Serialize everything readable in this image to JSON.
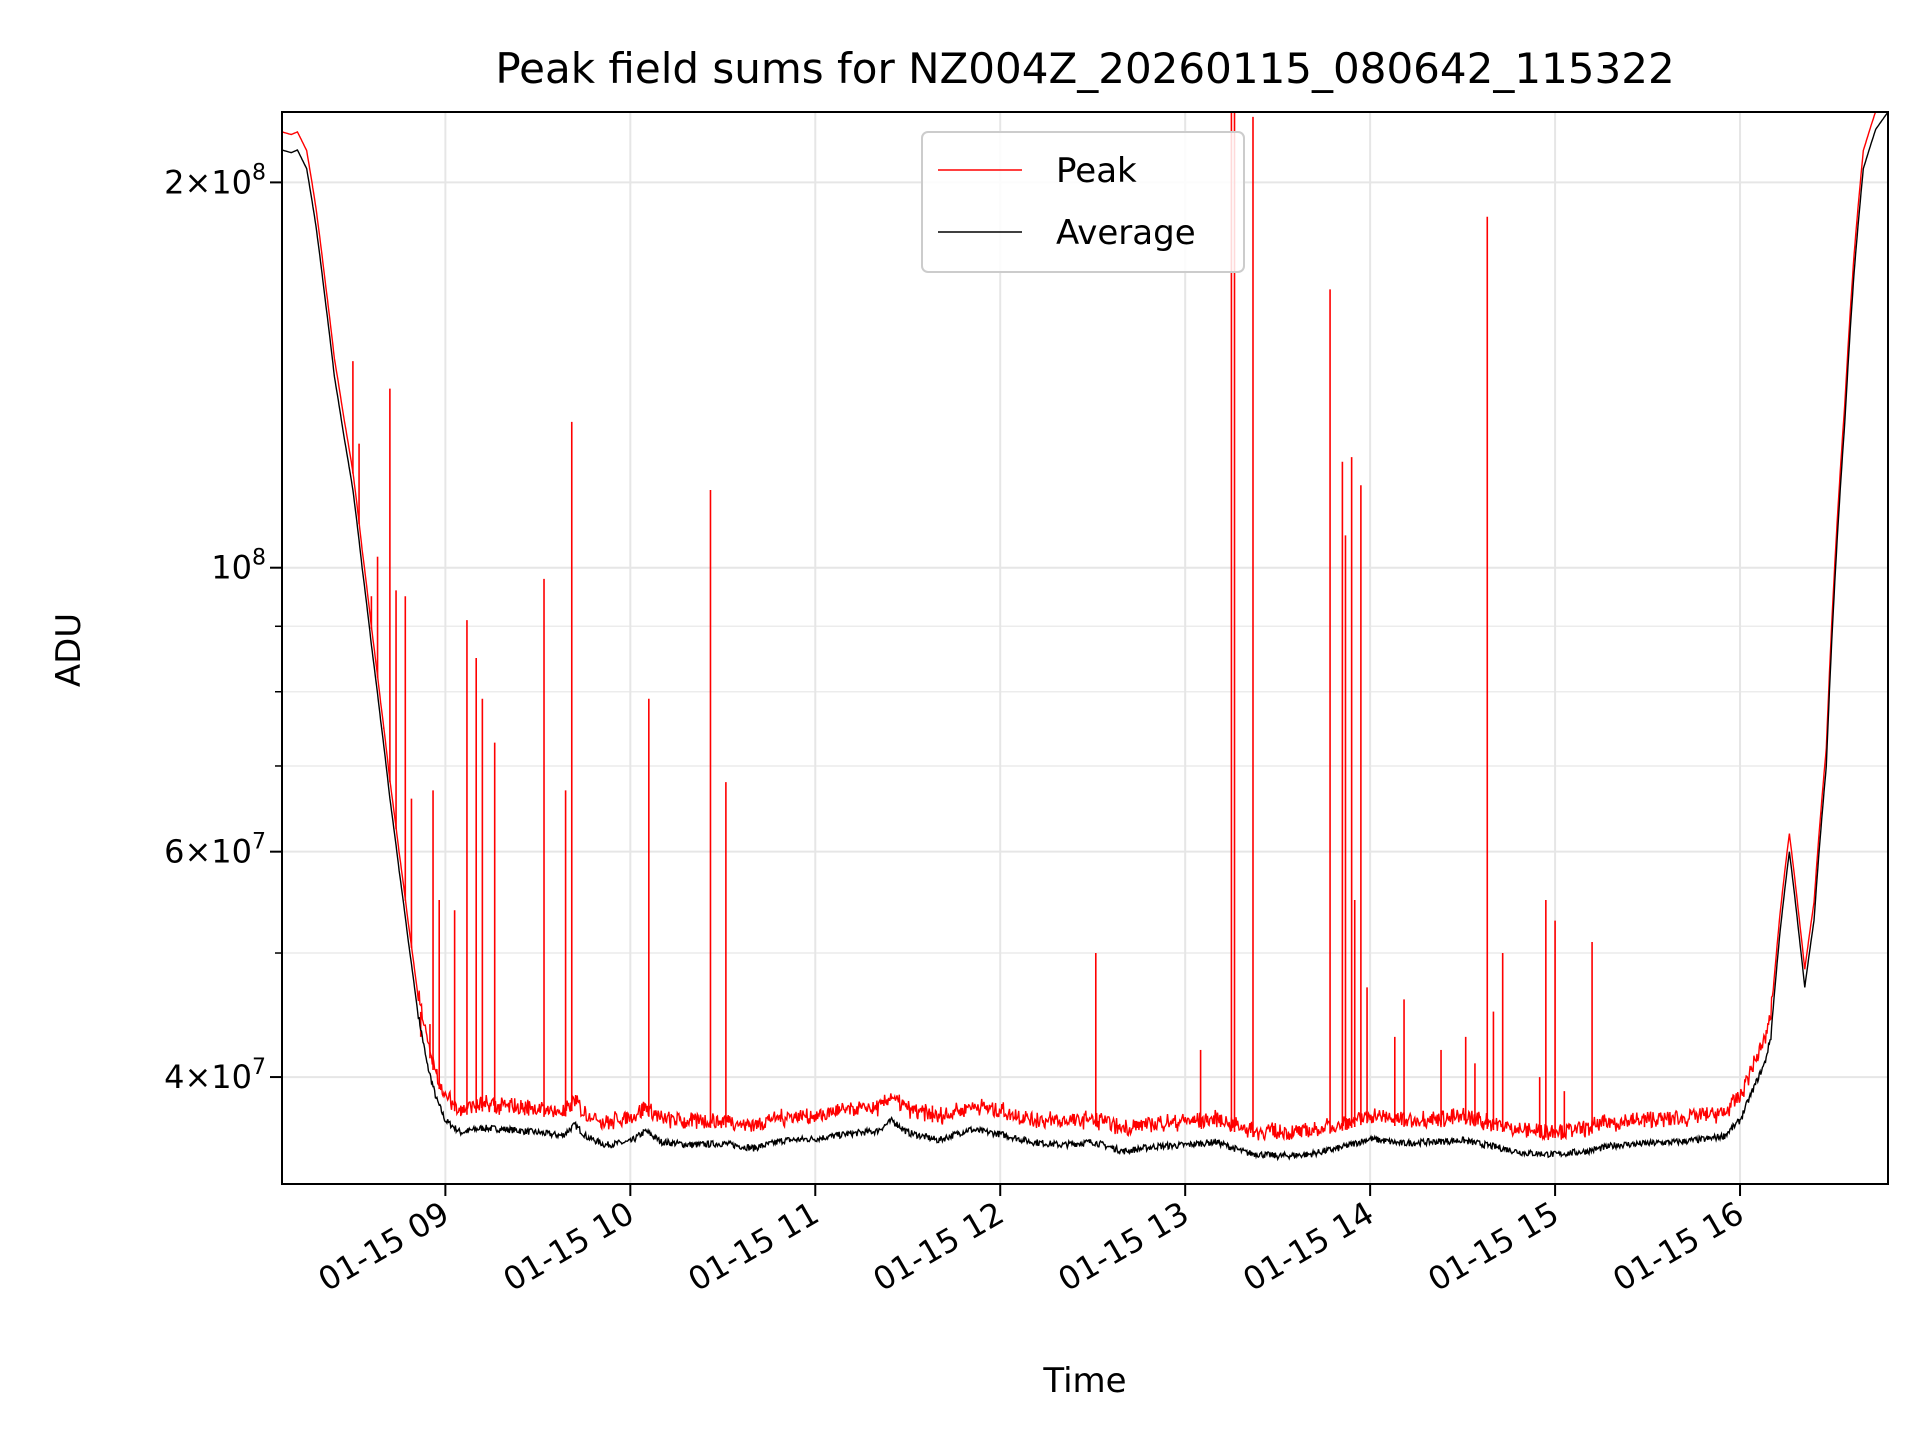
{
  "chart_data": {
    "type": "line",
    "title": "Peak field sums for NZ004Z_20260115_080642_115322",
    "xlabel": "Time",
    "ylabel": "ADU",
    "y_scale": "log",
    "xlim": [
      "01-15 08:07",
      "01-15 16:48"
    ],
    "ylim": [
      33000000,
      227000000
    ],
    "grid": true,
    "legend_position": "top-center",
    "x_ticks": [
      "01-15 09",
      "01-15 10",
      "01-15 11",
      "01-15 12",
      "01-15 13",
      "01-15 14",
      "01-15 15",
      "01-15 16"
    ],
    "x_tick_times": [
      "01-15 09:00",
      "01-15 10:00",
      "01-15 11:00",
      "01-15 12:00",
      "01-15 13:00",
      "01-15 14:00",
      "01-15 15:00",
      "01-15 16:00"
    ],
    "y_major_ticks": [
      {
        "value": 40000000,
        "mantissa": "4",
        "exponent": "7"
      },
      {
        "value": 60000000,
        "mantissa": "6",
        "exponent": "7"
      },
      {
        "value": 100000000,
        "mantissa": "",
        "exponent": "8"
      },
      {
        "value": 200000000,
        "mantissa": "2",
        "exponent": "8"
      }
    ],
    "y_minor_ticks": [
      30000000,
      50000000,
      70000000,
      80000000,
      90000000
    ],
    "series": [
      {
        "name": "Average",
        "color": "#000000",
        "points": [
          [
            "01-15 08:07",
            212000000
          ],
          [
            "01-15 08:10",
            211000000
          ],
          [
            "01-15 08:12",
            212000000
          ],
          [
            "01-15 08:15",
            205000000
          ],
          [
            "01-15 08:18",
            185000000
          ],
          [
            "01-15 08:21",
            162000000
          ],
          [
            "01-15 08:24",
            141000000
          ],
          [
            "01-15 08:27",
            127000000
          ],
          [
            "01-15 08:30",
            115000000
          ],
          [
            "01-15 08:33",
            100000000
          ],
          [
            "01-15 08:36",
            87000000
          ],
          [
            "01-15 08:39",
            76000000
          ],
          [
            "01-15 08:42",
            66000000
          ],
          [
            "01-15 08:45",
            58000000
          ],
          [
            "01-15 08:48",
            51000000
          ],
          [
            "01-15 08:51",
            45000000
          ],
          [
            "01-15 08:54",
            41000000
          ],
          [
            "01-15 08:57",
            38500000
          ],
          [
            "01-15 09:00",
            37000000
          ],
          [
            "01-15 09:05",
            36200000
          ],
          [
            "01-15 09:12",
            36500000
          ],
          [
            "01-15 09:20",
            36400000
          ],
          [
            "01-15 09:30",
            36200000
          ],
          [
            "01-15 09:38",
            36000000
          ],
          [
            "01-15 09:42",
            36700000
          ],
          [
            "01-15 09:46",
            35900000
          ],
          [
            "01-15 09:52",
            35400000
          ],
          [
            "01-15 10:00",
            35600000
          ],
          [
            "01-15 10:05",
            36300000
          ],
          [
            "01-15 10:10",
            35600000
          ],
          [
            "01-15 10:20",
            35400000
          ],
          [
            "01-15 10:30",
            35500000
          ],
          [
            "01-15 10:40",
            35200000
          ],
          [
            "01-15 10:50",
            35700000
          ],
          [
            "01-15 11:00",
            35800000
          ],
          [
            "01-15 11:10",
            36100000
          ],
          [
            "01-15 11:20",
            36300000
          ],
          [
            "01-15 11:25",
            37000000
          ],
          [
            "01-15 11:30",
            36200000
          ],
          [
            "01-15 11:40",
            35700000
          ],
          [
            "01-15 11:50",
            36400000
          ],
          [
            "01-15 12:00",
            36100000
          ],
          [
            "01-15 12:10",
            35600000
          ],
          [
            "01-15 12:20",
            35400000
          ],
          [
            "01-15 12:30",
            35600000
          ],
          [
            "01-15 12:40",
            35000000
          ],
          [
            "01-15 12:50",
            35300000
          ],
          [
            "01-15 13:00",
            35400000
          ],
          [
            "01-15 13:10",
            35600000
          ],
          [
            "01-15 13:20",
            34900000
          ],
          [
            "01-15 13:30",
            34700000
          ],
          [
            "01-15 13:40",
            34800000
          ],
          [
            "01-15 13:50",
            35200000
          ],
          [
            "01-15 14:00",
            35800000
          ],
          [
            "01-15 14:10",
            35500000
          ],
          [
            "01-15 14:20",
            35600000
          ],
          [
            "01-15 14:30",
            35700000
          ],
          [
            "01-15 14:40",
            35300000
          ],
          [
            "01-15 14:50",
            34900000
          ],
          [
            "01-15 15:00",
            34800000
          ],
          [
            "01-15 15:10",
            35000000
          ],
          [
            "01-15 15:20",
            35400000
          ],
          [
            "01-15 15:30",
            35500000
          ],
          [
            "01-15 15:40",
            35600000
          ],
          [
            "01-15 15:50",
            35800000
          ],
          [
            "01-15 15:55",
            36000000
          ],
          [
            "01-15 16:00",
            37000000
          ],
          [
            "01-15 16:04",
            39000000
          ],
          [
            "01-15 16:08",
            41000000
          ],
          [
            "01-15 16:10",
            43000000
          ],
          [
            "01-15 16:13",
            52000000
          ],
          [
            "01-15 16:16",
            60000000
          ],
          [
            "01-15 16:19",
            52000000
          ],
          [
            "01-15 16:21",
            47000000
          ],
          [
            "01-15 16:24",
            53000000
          ],
          [
            "01-15 16:28",
            70000000
          ],
          [
            "01-15 16:31",
            100000000
          ],
          [
            "01-15 16:34",
            130000000
          ],
          [
            "01-15 16:37",
            170000000
          ],
          [
            "01-15 16:40",
            205000000
          ],
          [
            "01-15 16:44",
            220000000
          ],
          [
            "01-15 16:48",
            227000000
          ]
        ]
      },
      {
        "name": "Peak",
        "color": "#ff0000",
        "baseline_offset": 1.03,
        "spikes": [
          [
            "01-15 08:30",
            145000000
          ],
          [
            "01-15 08:32",
            125000000
          ],
          [
            "01-15 08:36",
            95000000
          ],
          [
            "01-15 08:38",
            102000000
          ],
          [
            "01-15 08:40",
            75000000
          ],
          [
            "01-15 08:42",
            138000000
          ],
          [
            "01-15 08:44",
            96000000
          ],
          [
            "01-15 08:47",
            95000000
          ],
          [
            "01-15 08:49",
            66000000
          ],
          [
            "01-15 08:52",
            43000000
          ],
          [
            "01-15 08:55",
            44000000
          ],
          [
            "01-15 08:56",
            67000000
          ],
          [
            "01-15 08:58",
            55000000
          ],
          [
            "01-15 09:03",
            54000000
          ],
          [
            "01-15 09:05",
            38000000
          ],
          [
            "01-15 09:07",
            91000000
          ],
          [
            "01-15 09:10",
            85000000
          ],
          [
            "01-15 09:12",
            79000000
          ],
          [
            "01-15 09:16",
            73000000
          ],
          [
            "01-15 09:32",
            98000000
          ],
          [
            "01-15 09:39",
            67000000
          ],
          [
            "01-15 09:41",
            130000000
          ],
          [
            "01-15 10:06",
            79000000
          ],
          [
            "01-15 10:26",
            36500000
          ],
          [
            "01-15 10:26",
            115000000
          ],
          [
            "01-15 10:31",
            68000000
          ],
          [
            "01-15 11:38",
            38000000
          ],
          [
            "01-15 12:31",
            50000000
          ],
          [
            "01-15 13:05",
            42000000
          ],
          [
            "01-15 13:15",
            227000000
          ],
          [
            "01-15 13:16",
            227000000
          ],
          [
            "01-15 13:22",
            225000000
          ],
          [
            "01-15 13:47",
            165000000
          ],
          [
            "01-15 13:51",
            121000000
          ],
          [
            "01-15 13:52",
            106000000
          ],
          [
            "01-15 13:54",
            122000000
          ],
          [
            "01-15 13:55",
            55000000
          ],
          [
            "01-15 13:57",
            116000000
          ],
          [
            "01-15 13:59",
            47000000
          ],
          [
            "01-15 14:08",
            43000000
          ],
          [
            "01-15 14:11",
            46000000
          ],
          [
            "01-15 14:23",
            42000000
          ],
          [
            "01-15 14:31",
            43000000
          ],
          [
            "01-15 14:34",
            41000000
          ],
          [
            "01-15 14:38",
            188000000
          ],
          [
            "01-15 14:40",
            45000000
          ],
          [
            "01-15 14:43",
            50000000
          ],
          [
            "01-15 14:55",
            40000000
          ],
          [
            "01-15 14:57",
            55000000
          ],
          [
            "01-15 15:00",
            53000000
          ],
          [
            "01-15 15:03",
            39000000
          ],
          [
            "01-15 15:12",
            51000000
          ],
          [
            "01-15 15:29",
            37000000
          ]
        ]
      }
    ]
  }
}
